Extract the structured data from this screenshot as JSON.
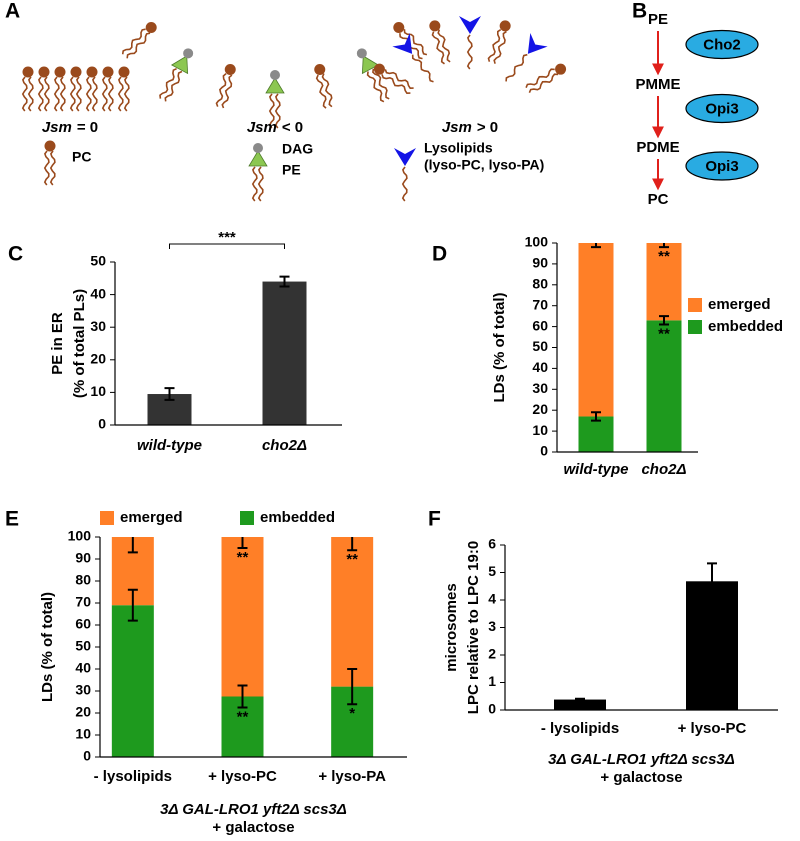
{
  "panel_a": {
    "label": "A",
    "states": [
      {
        "symbol": "Jsm",
        "relation": "= 0"
      },
      {
        "symbol": "Jsm",
        "relation": "< 0"
      },
      {
        "symbol": "Jsm",
        "relation": "> 0"
      }
    ],
    "key": {
      "pc": "PC",
      "dag": "DAG",
      "pe": "PE",
      "lyso": [
        "Lysolipids",
        "(lyso-PC, lyso-PA)"
      ]
    }
  },
  "panel_b": {
    "label": "B",
    "metabolites": [
      "PE",
      "PMME",
      "PDME",
      "PC"
    ],
    "enzymes": [
      "Cho2",
      "Opi3",
      "Opi3"
    ]
  },
  "chart_data": [
    {
      "panel": "C",
      "type": "bar",
      "categories": [
        "wild-type",
        "cho2Δ"
      ],
      "values": [
        9.5,
        44
      ],
      "errors": [
        1.8,
        1.5
      ],
      "color": "#333333",
      "y_label": [
        "PE in ER",
        "(% of total PLs)"
      ],
      "ylim": [
        0,
        50
      ],
      "yticks": [
        0,
        10,
        20,
        30,
        40,
        50
      ],
      "comparison": "***"
    },
    {
      "panel": "D",
      "type": "stacked_bar",
      "categories": [
        "wild-type",
        "cho2Δ"
      ],
      "series": [
        {
          "name": "embedded",
          "color": "#1e9a1e",
          "values": [
            17,
            63
          ],
          "errors": [
            2,
            2
          ],
          "significance": [
            null,
            "**"
          ]
        },
        {
          "name": "emerged",
          "color": "#ff7f27",
          "values": [
            83,
            37
          ],
          "errors": [
            2,
            2
          ],
          "significance": [
            null,
            "**"
          ]
        }
      ],
      "y_label": [
        "LDs (% of total)"
      ],
      "ylim": [
        0,
        100
      ],
      "yticks": [
        0,
        10,
        20,
        30,
        40,
        50,
        60,
        70,
        80,
        90,
        100
      ],
      "legend": "right"
    },
    {
      "panel": "E",
      "type": "stacked_bar",
      "categories": [
        "- lysolipids",
        "+ lyso-PC",
        "+ lyso-PA"
      ],
      "series": [
        {
          "name": "embedded",
          "color": "#1e9a1e",
          "values": [
            69,
            27.5,
            32
          ],
          "errors": [
            7,
            5,
            8
          ],
          "significance": [
            null,
            "**",
            "*"
          ]
        },
        {
          "name": "emerged",
          "color": "#ff7f27",
          "values": [
            31,
            72.5,
            68
          ],
          "errors": [
            7,
            5,
            6
          ],
          "significance": [
            null,
            "**",
            "**"
          ]
        }
      ],
      "y_label": [
        "LDs (% of total)"
      ],
      "x_label": [
        "3Δ GAL-LRO1 yft2Δ scs3Δ",
        "+ galactose"
      ],
      "ylim": [
        0,
        100
      ],
      "yticks": [
        0,
        10,
        20,
        30,
        40,
        50,
        60,
        70,
        80,
        90,
        100
      ],
      "legend": "top"
    },
    {
      "panel": "F",
      "type": "bar",
      "categories": [
        "- lysolipids",
        "+ lyso-PC"
      ],
      "values": [
        0.38,
        4.68
      ],
      "errors": [
        0.03,
        0.65
      ],
      "color": "#000000",
      "y_label": [
        "microsomes",
        "LPC relative to LPC 19:0"
      ],
      "x_label": [
        "3Δ GAL-LRO1 yft2Δ scs3Δ",
        "+ galactose"
      ],
      "ylim": [
        0,
        6
      ],
      "yticks": [
        0,
        1,
        2,
        3,
        4,
        5,
        6
      ]
    }
  ]
}
